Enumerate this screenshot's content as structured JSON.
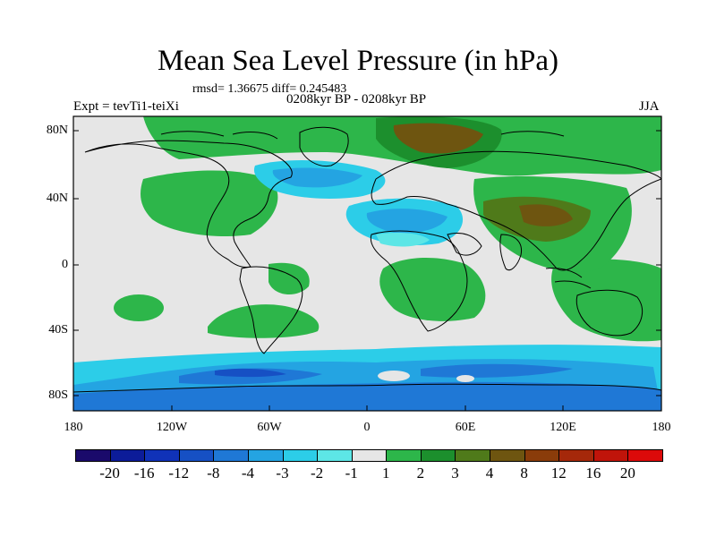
{
  "title": "Mean Sea Level Pressure (in hPa)",
  "stats": "rmsd= 1.36675 diff= 0.245483",
  "experiment": "Expt = tevTi1-teiXi",
  "period": "0208kyr BP - 0208kyr BP",
  "season": "JJA",
  "lat_labels": [
    "80N",
    "40N",
    "0",
    "40S",
    "80S"
  ],
  "lon_labels": [
    "180",
    "120W",
    "60W",
    "0",
    "60E",
    "120E",
    "180"
  ],
  "colorbar": {
    "colors": [
      "#1a0a6b",
      "#0c1c99",
      "#1032b8",
      "#1650c4",
      "#1f78d6",
      "#24a4e2",
      "#2ccde8",
      "#5de6e6",
      "#e6e6e6",
      "#2db64a",
      "#1c8f2d",
      "#4f7a1a",
      "#6e5510",
      "#8a3c0a",
      "#a5280a",
      "#c0140a",
      "#dc0a0a"
    ],
    "labels": [
      "-20",
      "-16",
      "-12",
      "-8",
      "-4",
      "-3",
      "-2",
      "-1",
      "1",
      "2",
      "3",
      "4",
      "8",
      "12",
      "16",
      "20"
    ]
  }
}
